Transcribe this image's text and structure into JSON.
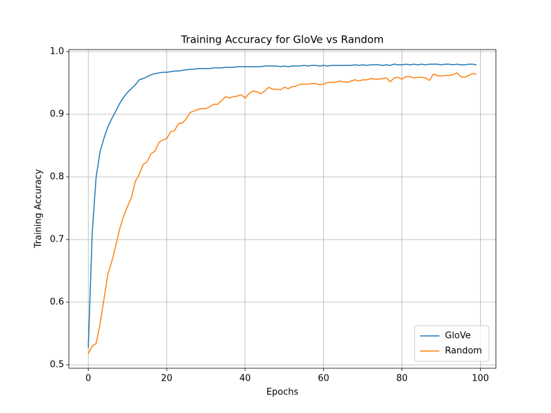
{
  "chart_data": {
    "type": "line",
    "title": "Training Accuracy for GloVe vs Random",
    "x_label": "Epochs",
    "y_label": "Training Accuracy",
    "x": [
      0,
      1,
      2,
      3,
      4,
      5,
      6,
      7,
      8,
      9,
      10,
      11,
      12,
      13,
      14,
      15,
      16,
      17,
      18,
      19,
      20,
      21,
      22,
      23,
      24,
      25,
      26,
      27,
      28,
      29,
      30,
      31,
      32,
      33,
      34,
      35,
      36,
      37,
      38,
      39,
      40,
      41,
      42,
      43,
      44,
      45,
      46,
      47,
      48,
      49,
      50,
      51,
      52,
      53,
      54,
      55,
      56,
      57,
      58,
      59,
      60,
      61,
      62,
      63,
      64,
      65,
      66,
      67,
      68,
      69,
      70,
      71,
      72,
      73,
      74,
      75,
      76,
      77,
      78,
      79,
      80,
      81,
      82,
      83,
      84,
      85,
      86,
      87,
      88,
      89,
      90,
      91,
      92,
      93,
      94,
      95,
      96,
      97,
      98,
      99
    ],
    "series": [
      {
        "name": "GloVe",
        "color": "#1f77b4",
        "values": [
          0.527,
          0.71,
          0.8,
          0.84,
          0.862,
          0.88,
          0.893,
          0.905,
          0.917,
          0.927,
          0.935,
          0.941,
          0.947,
          0.955,
          0.957,
          0.96,
          0.963,
          0.965,
          0.966,
          0.967,
          0.967,
          0.968,
          0.969,
          0.969,
          0.97,
          0.971,
          0.972,
          0.972,
          0.973,
          0.973,
          0.973,
          0.973,
          0.974,
          0.974,
          0.974,
          0.975,
          0.975,
          0.975,
          0.976,
          0.976,
          0.976,
          0.976,
          0.976,
          0.976,
          0.976,
          0.977,
          0.977,
          0.977,
          0.977,
          0.976,
          0.977,
          0.976,
          0.977,
          0.977,
          0.977,
          0.978,
          0.977,
          0.978,
          0.978,
          0.977,
          0.978,
          0.977,
          0.978,
          0.978,
          0.978,
          0.978,
          0.978,
          0.978,
          0.979,
          0.978,
          0.979,
          0.978,
          0.979,
          0.979,
          0.979,
          0.978,
          0.979,
          0.978,
          0.98,
          0.979,
          0.979,
          0.98,
          0.979,
          0.98,
          0.979,
          0.98,
          0.979,
          0.98,
          0.98,
          0.98,
          0.979,
          0.98,
          0.98,
          0.979,
          0.98,
          0.979,
          0.979,
          0.98,
          0.98,
          0.979
        ]
      },
      {
        "name": "Random",
        "color": "#ff7f0e",
        "values": [
          0.518,
          0.53,
          0.534,
          0.565,
          0.605,
          0.645,
          0.665,
          0.69,
          0.717,
          0.737,
          0.753,
          0.767,
          0.793,
          0.804,
          0.82,
          0.824,
          0.837,
          0.841,
          0.855,
          0.859,
          0.861,
          0.872,
          0.874,
          0.885,
          0.886,
          0.893,
          0.903,
          0.905,
          0.908,
          0.909,
          0.909,
          0.912,
          0.916,
          0.916,
          0.922,
          0.928,
          0.926,
          0.928,
          0.929,
          0.931,
          0.926,
          0.933,
          0.937,
          0.936,
          0.933,
          0.937,
          0.943,
          0.94,
          0.94,
          0.939,
          0.943,
          0.941,
          0.944,
          0.945,
          0.948,
          0.948,
          0.948,
          0.949,
          0.949,
          0.947,
          0.948,
          0.951,
          0.951,
          0.951,
          0.953,
          0.952,
          0.951,
          0.953,
          0.955,
          0.953,
          0.955,
          0.955,
          0.957,
          0.956,
          0.956,
          0.957,
          0.958,
          0.952,
          0.958,
          0.959,
          0.956,
          0.96,
          0.96,
          0.958,
          0.959,
          0.959,
          0.958,
          0.954,
          0.964,
          0.962,
          0.961,
          0.962,
          0.962,
          0.963,
          0.966,
          0.96,
          0.959,
          0.962,
          0.965,
          0.964
        ]
      }
    ],
    "xlim": [
      -4.95,
      103.95
    ],
    "xticks": [
      0,
      20,
      40,
      60,
      80,
      100
    ],
    "ylim": [
      0.4945,
      1.0033
    ],
    "yticks": [
      0.5,
      0.6,
      0.7,
      0.8,
      0.9,
      {
        "value": 1.0,
        "label": "1.0"
      }
    ],
    "grid": true,
    "legend": "lower right"
  }
}
